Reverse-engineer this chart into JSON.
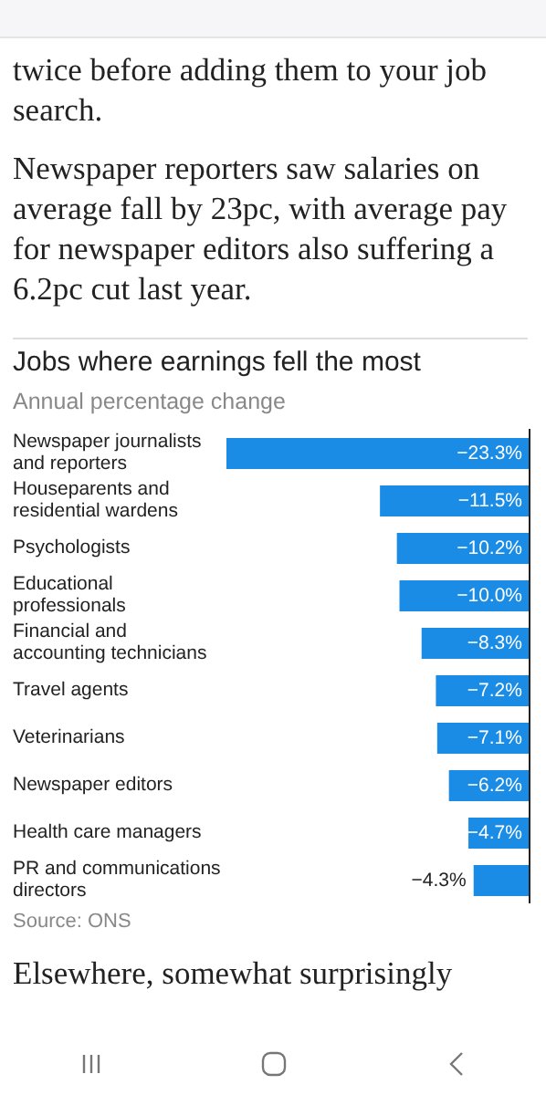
{
  "chart_data": {
    "type": "bar",
    "orientation": "horizontal",
    "title": "Jobs where earnings fell the most",
    "subtitle": "Annual percentage change",
    "categories": [
      "Newspaper journalists and reporters",
      "Houseparents and residential wardens",
      "Psychologists",
      "Educational professionals",
      "Financial and accounting technicians",
      "Travel agents",
      "Veterinarians",
      "Newspaper editors",
      "Health care managers",
      "PR and communications directors"
    ],
    "values": [
      -23.3,
      -11.5,
      -10.2,
      -10.0,
      -8.3,
      -7.2,
      -7.1,
      -6.2,
      -4.7,
      -4.3
    ],
    "value_labels": [
      "−23.3%",
      "−11.5%",
      "−10.2%",
      "−10.0%",
      "−8.3%",
      "−7.2%",
      "−7.1%",
      "−6.2%",
      "−4.7%",
      "−4.3%"
    ],
    "color": "#1a8ce6",
    "tick_labels": "y",
    "annotations": [
      "twice before adding them to your job search.",
      "Newspaper reporters saw salaries on average fall by 23pc, with average pay for newspaper editors also suffering a 6.2pc cut last year.",
      "Source: ONS",
      "Elsewhere, somewhat surprisingly"
    ]
  }
}
